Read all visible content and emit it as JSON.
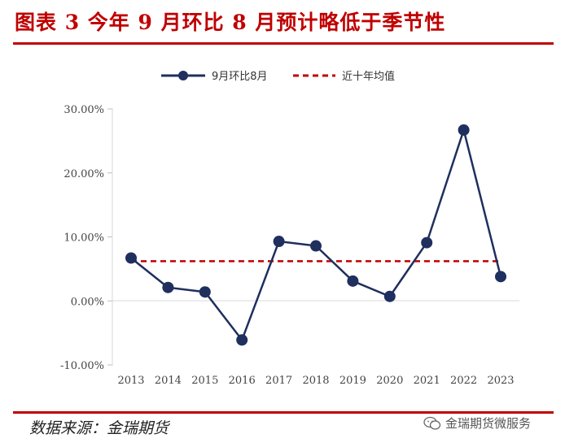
{
  "header": {
    "title": "图表 3  今年 9 月环比 8 月预计略低于季节性"
  },
  "footer": {
    "source": "数据来源：金瑞期货",
    "watermark": "金瑞期货微服务"
  },
  "colors": {
    "title_red": "#c00000",
    "series_navy": "#1f2f5e",
    "avg_red": "#c00000"
  },
  "chart_data": {
    "type": "line",
    "title": "",
    "xlabel": "",
    "ylabel": "",
    "categories": [
      "2013",
      "2014",
      "2015",
      "2016",
      "2017",
      "2018",
      "2019",
      "2020",
      "2021",
      "2022",
      "2023"
    ],
    "series": [
      {
        "name": "9月环比8月",
        "style": "solid-marker",
        "values": [
          6.7,
          2.1,
          1.4,
          -6.1,
          9.3,
          8.6,
          3.1,
          0.7,
          9.1,
          26.7,
          3.8
        ]
      },
      {
        "name": "近十年均值",
        "style": "dashed",
        "values": [
          6.2,
          6.2,
          6.2,
          6.2,
          6.2,
          6.2,
          6.2,
          6.2,
          6.2,
          6.2,
          6.2
        ]
      }
    ],
    "yticks": [
      30,
      20,
      10,
      0,
      -10
    ],
    "ytick_labels": [
      "30.00%",
      "20.00%",
      "10.00%",
      "0.00%",
      "-10.00%"
    ],
    "ylim": [
      -10,
      30
    ],
    "grid": false,
    "legend_position": "top-center"
  }
}
